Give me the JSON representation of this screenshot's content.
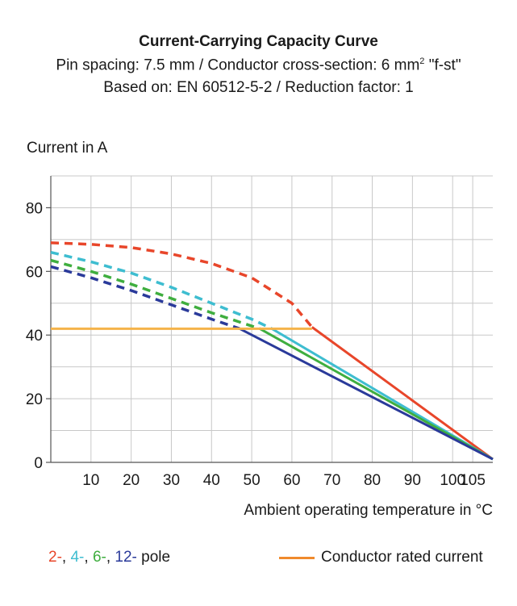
{
  "title": "Current-Carrying Capacity Curve",
  "subtitle1": "Pin spacing: 7.5 mm / Conductor cross-section: 6 mm",
  "subtitle1_sup": "2",
  "subtitle1_tail": " \"f-st\"",
  "subtitle2": "Based on: EN 60512-5-2 / Reduction factor: 1",
  "legend_poles": [
    {
      "text": "2-",
      "color": "#e8462a"
    },
    {
      "text": ", ",
      "color": "#1a1a1a"
    },
    {
      "text": "4-",
      "color": "#3ebdd0"
    },
    {
      "text": ", ",
      "color": "#1a1a1a"
    },
    {
      "text": "6-",
      "color": "#3fae3f"
    },
    {
      "text": ", ",
      "color": "#1a1a1a"
    },
    {
      "text": "12-",
      "color": "#2a3a9a"
    },
    {
      "text": " pole",
      "color": "#1a1a1a"
    }
  ],
  "legend_rated": "Conductor rated current",
  "chart_data": {
    "type": "line",
    "title": "Current-Carrying Capacity Curve",
    "xlabel": "Ambient operating temperature in °C",
    "ylabel": "Current in A",
    "xlim": [
      0,
      110
    ],
    "ylim": [
      0,
      90
    ],
    "xticks": [
      10,
      20,
      30,
      40,
      50,
      60,
      70,
      80,
      90,
      100,
      105
    ],
    "xtick_labels": [
      "10",
      "20",
      "30",
      "40",
      "50",
      "60",
      "70",
      "80",
      "90",
      "100",
      "105"
    ],
    "yticks": [
      0,
      20,
      40,
      60,
      80
    ],
    "grid": true,
    "series": [
      {
        "name": "2-",
        "color": "#e8462a",
        "dashed": [
          [
            0,
            69
          ],
          [
            10,
            68.5
          ],
          [
            20,
            67.5
          ],
          [
            30,
            65.5
          ],
          [
            40,
            62.5
          ],
          [
            50,
            58
          ],
          [
            60,
            50
          ],
          [
            65,
            42.5
          ]
        ],
        "solid": [
          [
            65,
            42.5
          ],
          [
            110,
            1
          ]
        ]
      },
      {
        "name": "4-",
        "color": "#3ebdd0",
        "dashed": [
          [
            0,
            66
          ],
          [
            10,
            63
          ],
          [
            20,
            59.5
          ],
          [
            30,
            55
          ],
          [
            40,
            50
          ],
          [
            50,
            45
          ],
          [
            55,
            42
          ]
        ],
        "solid": [
          [
            55,
            42
          ],
          [
            110,
            1
          ]
        ]
      },
      {
        "name": "6-",
        "color": "#3fae3f",
        "dashed": [
          [
            0,
            63.5
          ],
          [
            10,
            60
          ],
          [
            20,
            56
          ],
          [
            30,
            51.5
          ],
          [
            40,
            47
          ],
          [
            52,
            42
          ]
        ],
        "solid": [
          [
            52,
            42
          ],
          [
            110,
            1
          ]
        ]
      },
      {
        "name": "12-",
        "color": "#2a3a9a",
        "dashed": [
          [
            0,
            61.5
          ],
          [
            10,
            58
          ],
          [
            20,
            54
          ],
          [
            30,
            49.5
          ],
          [
            40,
            45
          ],
          [
            47,
            42
          ]
        ],
        "solid": [
          [
            47,
            42
          ],
          [
            110,
            1
          ]
        ]
      },
      {
        "name": "Conductor rated current",
        "color": "#f5b34a",
        "solid": [
          [
            0,
            42
          ],
          [
            65,
            42
          ]
        ]
      }
    ]
  }
}
